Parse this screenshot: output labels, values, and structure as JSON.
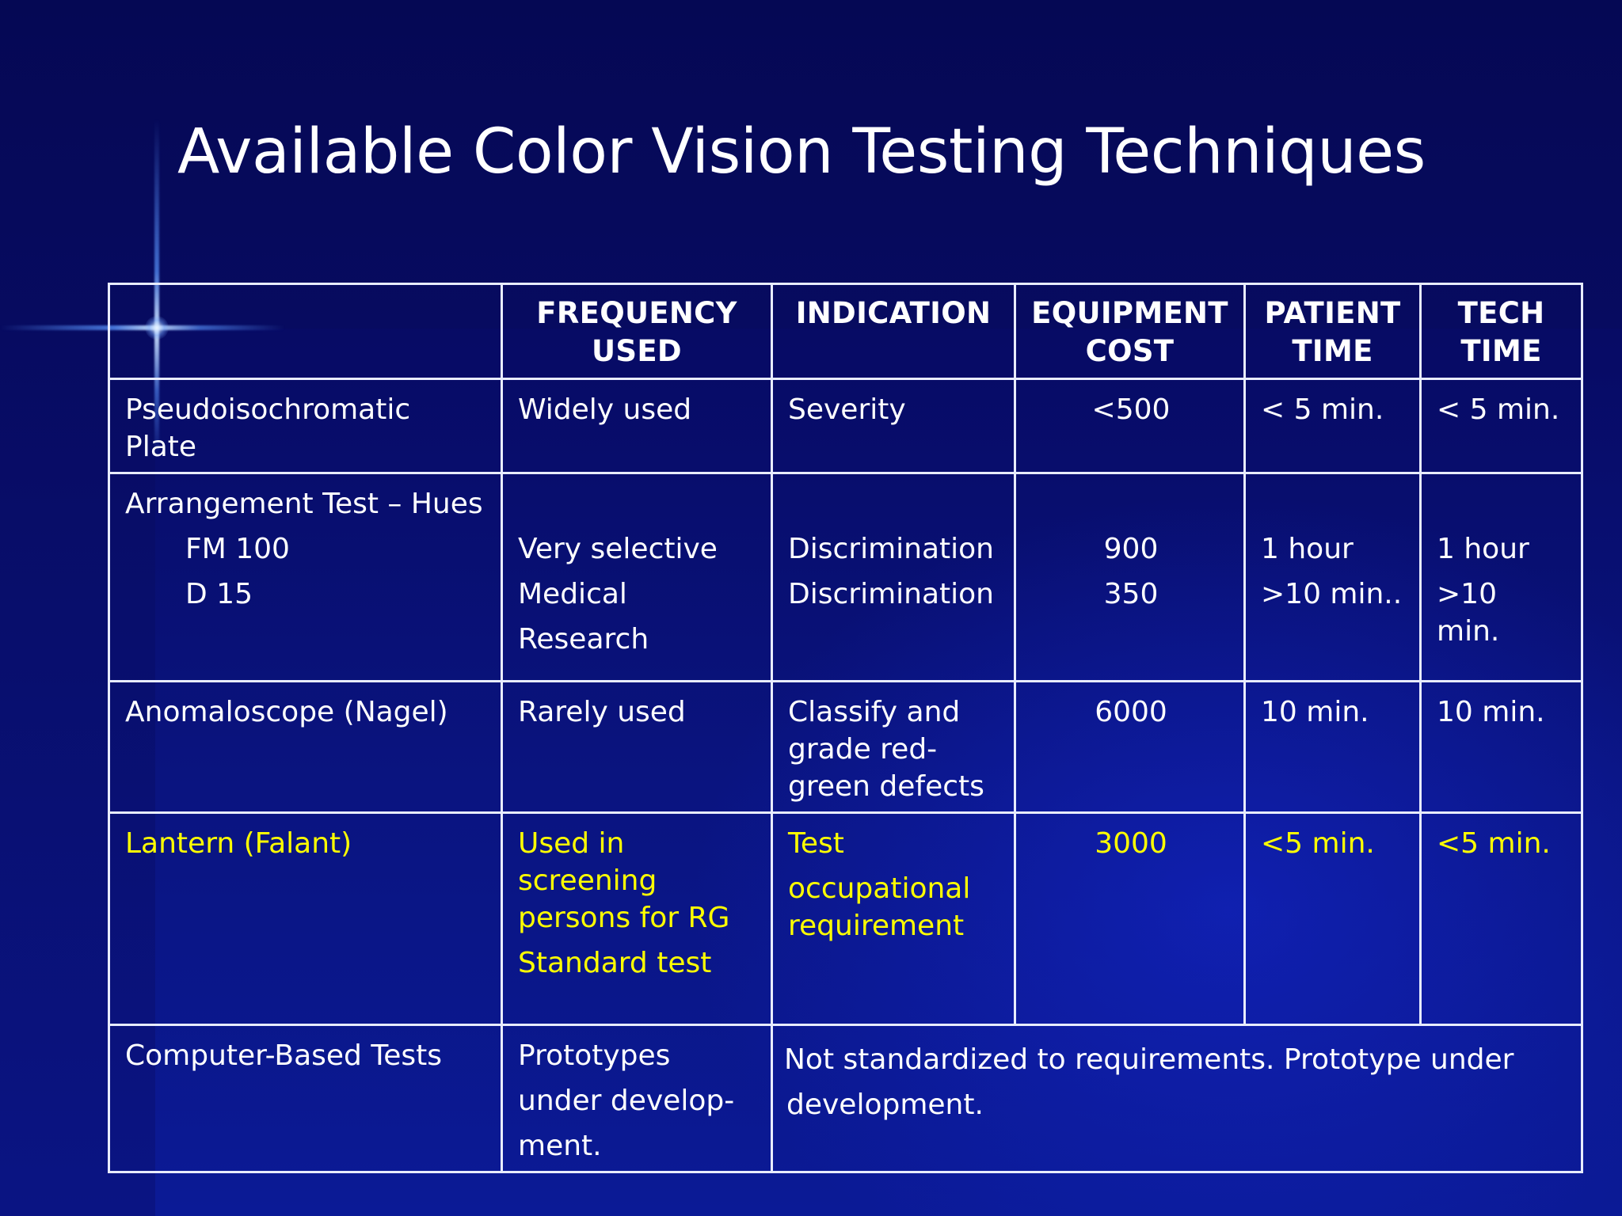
{
  "slide": {
    "title": "Available Color Vision Testing Techniques"
  },
  "table": {
    "headers": {
      "frequency": [
        "FREQUENCY",
        "USED"
      ],
      "indication": [
        "INDICATION"
      ],
      "equipment": [
        "EQUIPMENT",
        "COST"
      ],
      "patient": [
        "PATIENT",
        "TIME"
      ],
      "tech": [
        "TECH",
        "TIME"
      ]
    },
    "rows": {
      "pseudo": {
        "method": "Pseudoisochromatic Plate",
        "frequency": "Widely used",
        "indication": "Severity",
        "cost": "<500",
        "patient_time": "< 5 min.",
        "tech_time": "< 5 min."
      },
      "arrangement": {
        "method": "Arrangement Test – Hues",
        "sub1": "FM 100",
        "sub2": "D 15",
        "frequency": [
          "Very selective",
          "Medical",
          "Research"
        ],
        "indication": [
          "Discrimination",
          "Discrimination"
        ],
        "cost": [
          "900",
          "350"
        ],
        "patient_time": [
          "1 hour",
          ">10 min.."
        ],
        "tech_time": [
          "1 hour",
          ">10 min."
        ]
      },
      "anomaloscope": {
        "method": "Anomaloscope (Nagel)",
        "frequency": "Rarely used",
        "indication": [
          "Classify and",
          "grade red-",
          "green defects"
        ],
        "cost": "6000",
        "patient_time": "10 min.",
        "tech_time": "10 min."
      },
      "lantern": {
        "method": "Lantern (Falant)",
        "frequency": [
          "Used in",
          "screening",
          "persons for RG",
          "Standard test"
        ],
        "indication": [
          "Test",
          "occupational",
          "requirement"
        ],
        "cost": "3000",
        "patient_time": "<5 min.",
        "tech_time": "<5 min.",
        "color": "#ffff00"
      },
      "computer": {
        "method": "Computer-Based Tests",
        "frequency": [
          "Prototypes",
          "under develop-",
          "ment."
        ],
        "note": [
          "Not standardized to requirements.  Prototype under",
          "development."
        ]
      }
    }
  }
}
